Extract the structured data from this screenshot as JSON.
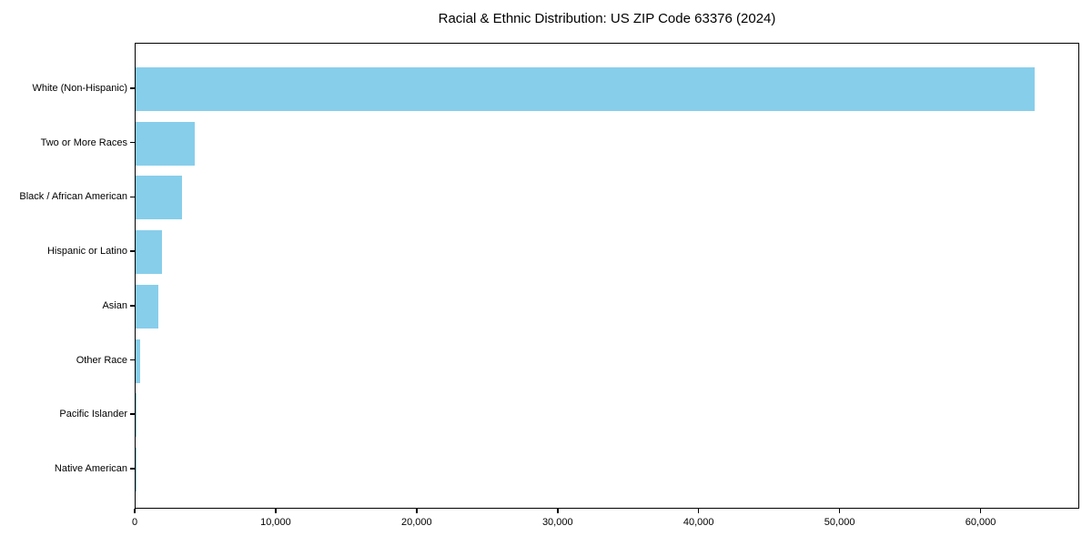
{
  "chart_data": {
    "type": "bar",
    "orientation": "horizontal",
    "title": "Racial & Ethnic Distribution: US ZIP Code 63376 (2024)",
    "categories": [
      "White (Non-Hispanic)",
      "Two or More Races",
      "Black / African American",
      "Hispanic or Latino",
      "Asian",
      "Other Race",
      "Pacific Islander",
      "Native American"
    ],
    "values": [
      63800,
      4200,
      3300,
      1900,
      1600,
      300,
      40,
      25
    ],
    "bar_color": "#87CEEB",
    "axis_color": "#000000",
    "text_color": "#000000",
    "background_color": "#ffffff",
    "xlabel": "",
    "ylabel": "",
    "xlim": [
      0,
      67000
    ],
    "x_ticks": [
      0,
      10000,
      20000,
      30000,
      40000,
      50000,
      60000
    ],
    "x_tick_labels": [
      "0",
      "10,000",
      "20,000",
      "30,000",
      "40,000",
      "50,000",
      "60,000"
    ],
    "grid": false,
    "legend": "none"
  }
}
